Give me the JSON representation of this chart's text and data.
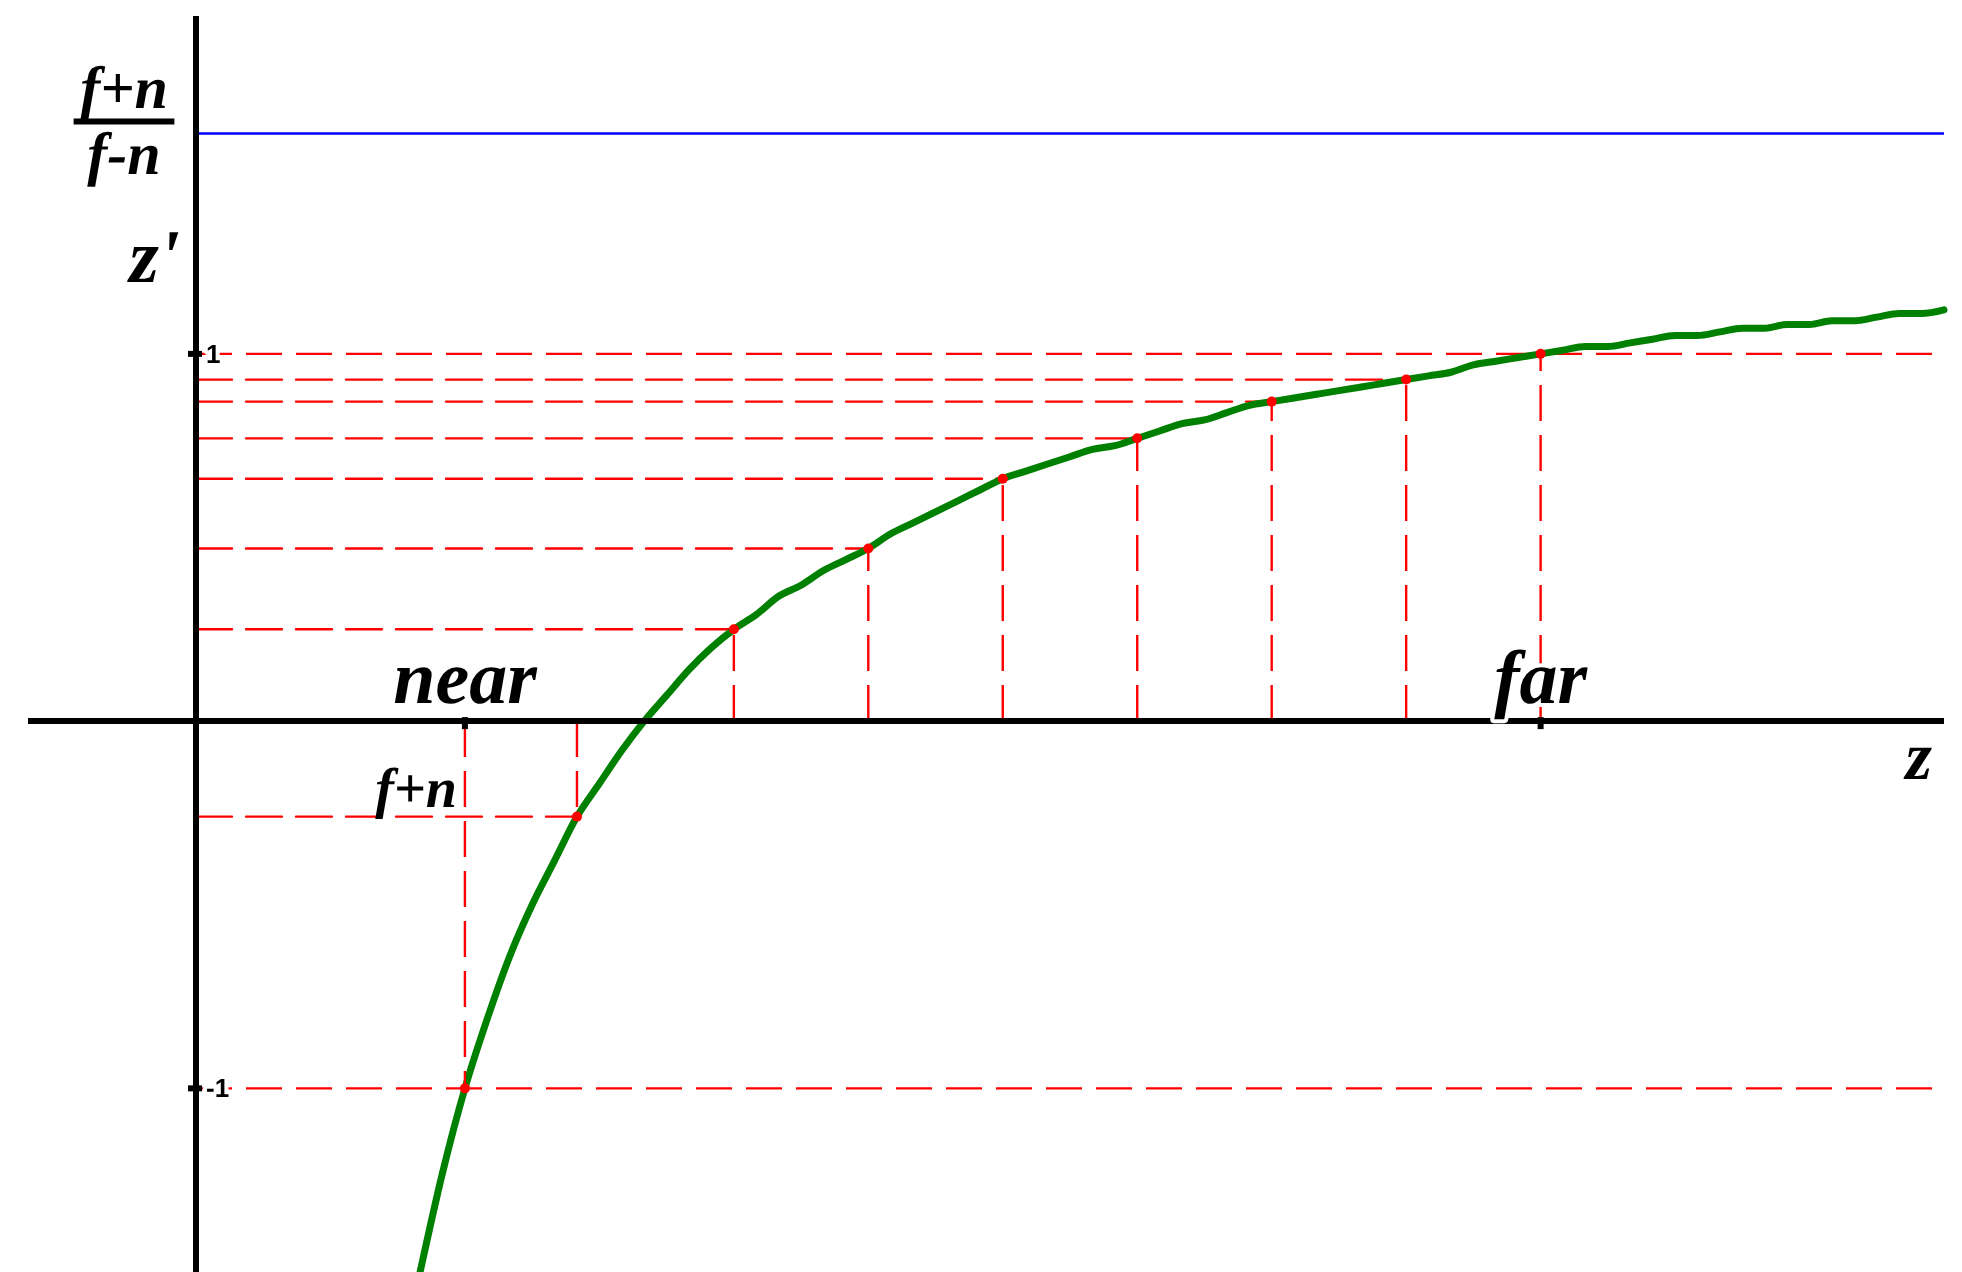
{
  "chart_data": {
    "type": "line",
    "xlabel": "z",
    "ylabel": "z'",
    "categories": [
      null,
      null,
      null,
      null,
      null,
      null,
      null,
      null,
      null,
      null,
      null,
      null,
      "near",
      null,
      null,
      null,
      null,
      null,
      null,
      null,
      null,
      null,
      null,
      null,
      null,
      null,
      null,
      null,
      null,
      null,
      null,
      null,
      null,
      null,
      null,
      null,
      null,
      null,
      null,
      null,
      null,
      null,
      null,
      null,
      null,
      null,
      null,
      null,
      null,
      null,
      null,
      null,
      null,
      null,
      null,
      null,
      null,
      null,
      null,
      null,
      "far",
      null,
      null,
      null,
      null,
      null,
      null,
      null,
      null,
      null,
      null,
      null,
      null,
      null,
      null,
      null,
      null,
      null,
      null
    ],
    "ylim": [
      -1.5,
      1.92
    ],
    "yticks": [
      -1,
      1
    ],
    "ref_lines": [
      {
        "axis": "y",
        "value": 1.6,
        "label": "f+n\nf-n",
        "color": "#0000ff",
        "line_style": "solid"
      },
      {
        "axis": "y",
        "value": 1,
        "color": "#ff0000",
        "line_style": "dashed"
      },
      {
        "axis": "y",
        "value": -1,
        "color": "#ff0000",
        "line_style": "dashed"
      }
    ],
    "annotations": [
      {
        "text": "f+n",
        "x": "near",
        "y": -0.26
      }
    ],
    "series": [
      {
        "color": "#ff0000",
        "line_style": "dashed",
        "values": [
          -0.26,
          -0.26,
          -0.26,
          -0.26,
          -0.26,
          -0.26,
          -0.26,
          -0.26,
          -0.26,
          -0.26,
          -0.26,
          -0.26,
          -0.26,
          -0.26,
          -0.26,
          -0.26,
          -0.26,
          -0.26,
          null,
          null,
          null,
          null,
          null,
          null,
          null,
          null,
          null,
          null,
          null,
          null,
          null,
          null,
          null,
          null,
          null,
          null,
          null,
          null,
          null,
          null,
          null,
          null,
          null,
          null,
          null,
          null,
          null,
          null,
          null,
          null,
          null,
          null,
          null,
          null,
          null,
          null,
          null,
          null,
          null,
          null,
          null,
          null,
          null,
          null,
          null,
          null,
          null,
          null,
          null,
          null,
          null,
          null,
          null,
          null,
          null,
          null,
          null,
          null,
          null
        ]
      },
      {
        "color": "#ff0000",
        "line_style": "dashed",
        "values": [
          0.25,
          0.25,
          0.25,
          0.25,
          0.25,
          0.25,
          0.25,
          0.25,
          0.25,
          0.25,
          0.25,
          0.25,
          0.25,
          0.25,
          0.25,
          0.25,
          0.25,
          0.25,
          0.25,
          0.25,
          0.25,
          0.25,
          0.25,
          0.25,
          0.25,
          null,
          null,
          null,
          null,
          null,
          null,
          null,
          null,
          null,
          null,
          null,
          null,
          null,
          null,
          null,
          null,
          null,
          null,
          null,
          null,
          null,
          null,
          null,
          null,
          null,
          null,
          null,
          null,
          null,
          null,
          null,
          null,
          null,
          null,
          null,
          null,
          null,
          null,
          null,
          null,
          null,
          null,
          null,
          null,
          null,
          null,
          null,
          null,
          null,
          null,
          null,
          null,
          null,
          null
        ]
      },
      {
        "color": "#ff0000",
        "line_style": "dashed",
        "values": [
          0.47,
          0.47,
          0.47,
          0.47,
          0.47,
          0.47,
          0.47,
          0.47,
          0.47,
          0.47,
          0.47,
          0.47,
          0.47,
          0.47,
          0.47,
          0.47,
          0.47,
          0.47,
          0.47,
          0.47,
          0.47,
          0.47,
          0.47,
          0.47,
          0.47,
          0.47,
          0.47,
          0.47,
          0.47,
          0.47,
          0.47,
          null,
          null,
          null,
          null,
          null,
          null,
          null,
          null,
          null,
          null,
          null,
          null,
          null,
          null,
          null,
          null,
          null,
          null,
          null,
          null,
          null,
          null,
          null,
          null,
          null,
          null,
          null,
          null,
          null,
          null,
          null,
          null,
          null,
          null,
          null,
          null,
          null,
          null,
          null,
          null,
          null,
          null,
          null,
          null,
          null,
          null,
          null,
          null
        ]
      },
      {
        "color": "#ff0000",
        "line_style": "dashed",
        "values": [
          0.66,
          0.66,
          0.66,
          0.66,
          0.66,
          0.66,
          0.66,
          0.66,
          0.66,
          0.66,
          0.66,
          0.66,
          0.66,
          0.66,
          0.66,
          0.66,
          0.66,
          0.66,
          0.66,
          0.66,
          0.66,
          0.66,
          0.66,
          0.66,
          0.66,
          0.66,
          0.66,
          0.66,
          0.66,
          0.66,
          0.66,
          0.66,
          0.66,
          0.66,
          0.66,
          0.66,
          0.66,
          null,
          null,
          null,
          null,
          null,
          null,
          null,
          null,
          null,
          null,
          null,
          null,
          null,
          null,
          null,
          null,
          null,
          null,
          null,
          null,
          null,
          null,
          null,
          null,
          null,
          null,
          null,
          null,
          null,
          null,
          null,
          null,
          null,
          null,
          null,
          null,
          null,
          null,
          null,
          null,
          null,
          null
        ]
      },
      {
        "color": "#ff0000",
        "line_style": "dashed",
        "values": [
          0.77,
          0.77,
          0.77,
          0.77,
          0.77,
          0.77,
          0.77,
          0.77,
          0.77,
          0.77,
          0.77,
          0.77,
          0.77,
          0.77,
          0.77,
          0.77,
          0.77,
          0.77,
          0.77,
          0.77,
          0.77,
          0.77,
          0.77,
          0.77,
          0.77,
          0.77,
          0.77,
          0.77,
          0.77,
          0.77,
          0.77,
          0.77,
          0.77,
          0.77,
          0.77,
          0.77,
          0.77,
          0.77,
          0.77,
          0.77,
          0.77,
          0.77,
          0.77,
          null,
          null,
          null,
          null,
          null,
          null,
          null,
          null,
          null,
          null,
          null,
          null,
          null,
          null,
          null,
          null,
          null,
          null,
          null,
          null,
          null,
          null,
          null,
          null,
          null,
          null,
          null,
          null,
          null,
          null,
          null,
          null,
          null,
          null,
          null,
          null
        ]
      },
      {
        "color": "#ff0000",
        "line_style": "dashed",
        "values": [
          0.87,
          0.87,
          0.87,
          0.87,
          0.87,
          0.87,
          0.87,
          0.87,
          0.87,
          0.87,
          0.87,
          0.87,
          0.87,
          0.87,
          0.87,
          0.87,
          0.87,
          0.87,
          0.87,
          0.87,
          0.87,
          0.87,
          0.87,
          0.87,
          0.87,
          0.87,
          0.87,
          0.87,
          0.87,
          0.87,
          0.87,
          0.87,
          0.87,
          0.87,
          0.87,
          0.87,
          0.87,
          0.87,
          0.87,
          0.87,
          0.87,
          0.87,
          0.87,
          0.87,
          0.87,
          0.87,
          0.87,
          0.87,
          0.87,
          null,
          null,
          null,
          null,
          null,
          null,
          null,
          null,
          null,
          null,
          null,
          null,
          null,
          null,
          null,
          null,
          null,
          null,
          null,
          null,
          null,
          null,
          null,
          null,
          null,
          null,
          null,
          null,
          null,
          null
        ]
      },
      {
        "color": "#ff0000",
        "line_style": "dashed",
        "values": [
          0.93,
          0.93,
          0.93,
          0.93,
          0.93,
          0.93,
          0.93,
          0.93,
          0.93,
          0.93,
          0.93,
          0.93,
          0.93,
          0.93,
          0.93,
          0.93,
          0.93,
          0.93,
          0.93,
          0.93,
          0.93,
          0.93,
          0.93,
          0.93,
          0.93,
          0.93,
          0.93,
          0.93,
          0.93,
          0.93,
          0.93,
          0.93,
          0.93,
          0.93,
          0.93,
          0.93,
          0.93,
          0.93,
          0.93,
          0.93,
          0.93,
          0.93,
          0.93,
          0.93,
          0.93,
          0.93,
          0.93,
          0.93,
          0.93,
          0.93,
          0.93,
          0.93,
          0.93,
          0.93,
          0.93,
          null,
          null,
          null,
          null,
          null,
          null,
          null,
          null,
          null,
          null,
          null,
          null,
          null,
          null,
          null,
          null,
          null,
          null,
          null,
          null,
          null,
          null,
          null,
          null
        ]
      },
      {
        "color": "#008000",
        "line_style": "solid",
        "values": [
          null,
          null,
          null,
          null,
          null,
          null,
          null,
          null,
          null,
          null,
          -1.5,
          -1.23,
          -1,
          -0.81,
          -0.64,
          -0.5,
          -0.38,
          -0.26,
          -0.17,
          -0.08,
          0,
          0.07,
          0.14,
          0.2,
          0.25,
          0.29,
          0.34,
          0.37,
          0.41,
          0.44,
          0.47,
          0.51,
          0.54,
          0.57,
          0.6,
          0.63,
          0.66,
          0.68,
          0.7,
          0.72,
          0.74,
          0.75,
          0.77,
          0.79,
          0.81,
          0.82,
          0.84,
          0.86,
          0.87,
          0.88,
          0.89,
          0.9,
          0.91,
          0.92,
          0.93,
          0.94,
          0.95,
          0.97,
          0.98,
          0.99,
          1,
          1.01,
          1.02,
          1.02,
          1.03,
          1.04,
          1.05,
          1.05,
          1.06,
          1.07,
          1.07,
          1.08,
          1.08,
          1.09,
          1.09,
          1.1,
          1.11,
          1.11,
          1.12
        ]
      },
      {
        "type": "lollipop",
        "marker": "circle",
        "color": "#ff0000",
        "line_style": "dashed",
        "values": [
          null,
          null,
          null,
          null,
          null,
          null,
          null,
          null,
          null,
          null,
          null,
          null,
          -1,
          null,
          null,
          null,
          null,
          -0.26,
          null,
          null,
          null,
          null,
          null,
          null,
          0.25,
          null,
          null,
          null,
          null,
          null,
          0.47,
          null,
          null,
          null,
          null,
          null,
          0.66,
          null,
          null,
          null,
          null,
          null,
          0.77,
          null,
          null,
          null,
          null,
          null,
          0.87,
          null,
          null,
          null,
          null,
          null,
          0.93,
          null,
          null,
          null,
          null,
          null,
          1,
          null,
          null,
          null,
          null,
          null,
          null,
          null,
          null,
          null,
          null,
          null,
          null,
          null,
          null,
          null,
          null,
          null,
          null
        ]
      }
    ]
  }
}
